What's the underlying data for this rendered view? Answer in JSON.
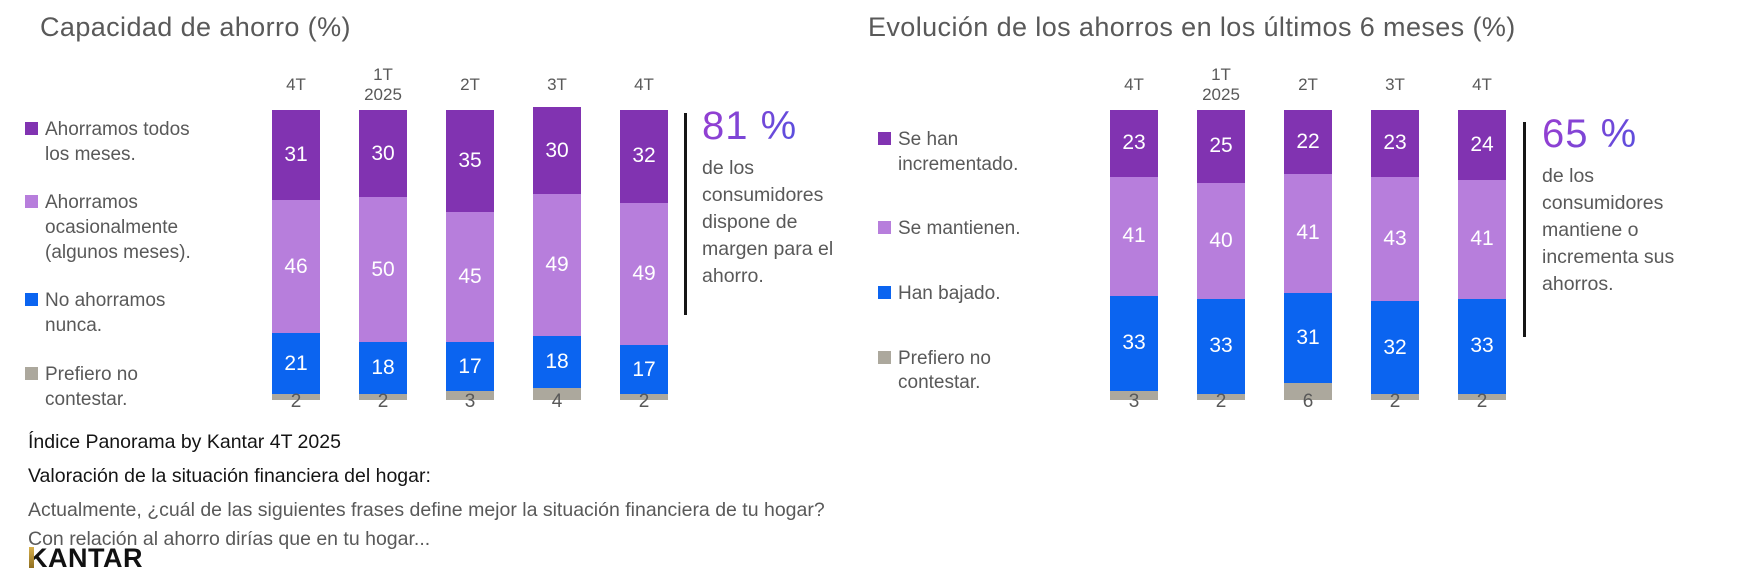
{
  "chart_data": [
    {
      "type": "bar",
      "stacked": true,
      "title": "Capacidad de ahorro (%)",
      "categories": [
        "4T",
        "1T\n2025",
        "2T",
        "3T",
        "4T"
      ],
      "series": [
        {
          "name": "Ahorramos todos los meses.",
          "color": "#8133B1",
          "values": [
            31,
            30,
            35,
            30,
            32
          ]
        },
        {
          "name": "Ahorramos ocasionalmente (algunos meses).",
          "color": "#B77EDC",
          "values": [
            46,
            50,
            45,
            49,
            49
          ]
        },
        {
          "name": "No ahorramos nunca.",
          "color": "#0B64F0",
          "values": [
            21,
            18,
            17,
            18,
            17
          ]
        },
        {
          "name": "Prefiero no contestar.",
          "color": "#ACA89D",
          "values": [
            2,
            2,
            3,
            4,
            2
          ],
          "label_outside": true
        }
      ],
      "ylim": [
        0,
        100
      ],
      "legend_position": "left",
      "grid": false,
      "callout": {
        "value": "81 %",
        "text": "de los consumidores dispone de margen para el ahorro."
      }
    },
    {
      "type": "bar",
      "stacked": true,
      "title": "Evolución de los ahorros en los últimos 6 meses (%)",
      "categories": [
        "4T",
        "1T\n2025",
        "2T",
        "3T",
        "4T"
      ],
      "series": [
        {
          "name": "Se han incrementado.",
          "color": "#8133B1",
          "values": [
            23,
            25,
            22,
            23,
            24
          ]
        },
        {
          "name": "Se mantienen.",
          "color": "#B77EDC",
          "values": [
            41,
            40,
            41,
            43,
            41
          ]
        },
        {
          "name": "Han bajado.",
          "color": "#0B64F0",
          "values": [
            33,
            33,
            31,
            32,
            33
          ]
        },
        {
          "name": "Prefiero no contestar.",
          "color": "#ACA89D",
          "values": [
            3,
            2,
            6,
            2,
            2
          ],
          "label_outside": true
        }
      ],
      "ylim": [
        0,
        100
      ],
      "legend_position": "left",
      "grid": false,
      "callout": {
        "value": "65 %",
        "text": "de los consumidores mantiene o incrementa sus ahorros."
      }
    }
  ],
  "footer": {
    "line1": "Índice Panorama by Kantar 4T 2025",
    "line2": "Valoración de la situación financiera del hogar:",
    "line3": "Actualmente, ¿cuál de las siguientes frases define mejor la situación financiera de tu hogar?",
    "line4": "Con relación al ahorro dirías que en tu hogar...",
    "logo_first_letter": "K",
    "logo_rest": "ANTAR"
  }
}
